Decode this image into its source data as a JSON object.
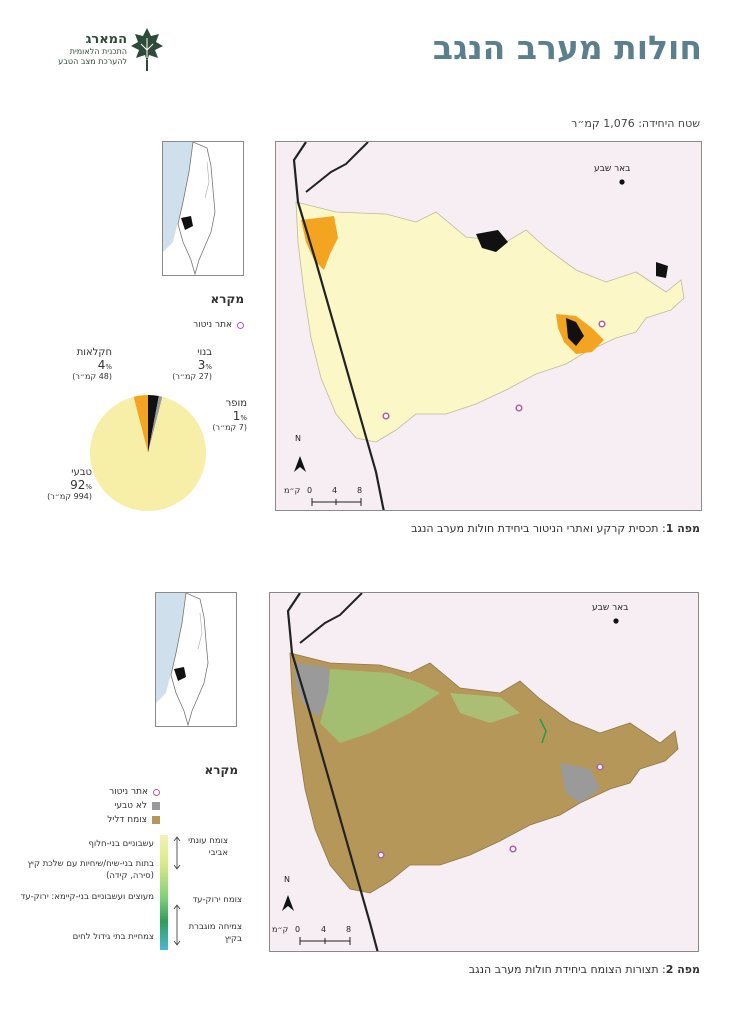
{
  "header": {
    "title": "חולות מערב הנגב",
    "logo": {
      "name": "המארג",
      "line1": "התכנית הלאומית",
      "line2": "להערכת מצב הטבע"
    },
    "area_text": "שטח היחידה: 1,076 קמ״ר"
  },
  "map1": {
    "city": "באר שבע",
    "north": "N",
    "scale_unit": "ק״מ",
    "scale_ticks": [
      "0",
      "4",
      "8"
    ],
    "caption_bold": "מפה 1",
    "caption_text": ": תכסית קרקע ואתרי הניטור ביחידת חולות מערב הנגב",
    "legend_title": "מקרא",
    "legend_monitor": "אתר ניטור"
  },
  "pie": {
    "chart_data": {
      "type": "pie",
      "slices": [
        {
          "name": "טבעי",
          "value": 92,
          "km": "(994 קמ״ר)",
          "color": "#f7efa8"
        },
        {
          "name": "חקלאות",
          "value": 4,
          "km": "(48 קמ״ר)",
          "color": "#f3a521"
        },
        {
          "name": "בנוי",
          "value": 3,
          "km": "(27 קמ״ר)",
          "color": "#111111"
        },
        {
          "name": "מופר",
          "value": 1,
          "km": "(7 קמ״ר)",
          "color": "#9a9a9a"
        }
      ]
    },
    "pct_sign": "%"
  },
  "map2": {
    "city": "באר שבע",
    "north": "N",
    "scale_unit": "ק״מ",
    "scale_ticks": [
      "0",
      "4",
      "8"
    ],
    "caption_bold": "מפה 2",
    "caption_text": ": תצורות הצומח ביחידת חולות מערב הנגב",
    "legend_title": "מקרא",
    "legend_monitor": "אתר ניטור",
    "legend_non_natural": "לא טבעי",
    "legend_sparse": "צומח דליל",
    "gradient_labels": {
      "annual": "עשבוניים בני-חלוף",
      "shrubs": "בתות בני-שיח/שיחיות עם שלכת קיץ (סירה, קידה)",
      "woody": "מעוצים ועשבוניים בני-קיימא: ירוק-עד",
      "irrigated": "צמחיית בתי גידול לחים"
    },
    "gradient_side": {
      "spring": "צומח עונתי אביבי",
      "evergreen": "צומח ירוק-עד",
      "summer": "צמיחה מוגברת בקיץ"
    }
  }
}
